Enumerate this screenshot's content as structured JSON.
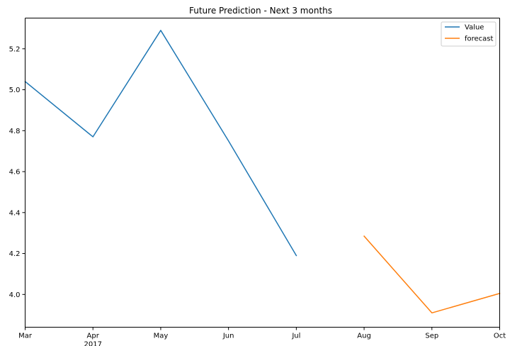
{
  "chart_data": {
    "type": "line",
    "title": "Future Prediction - Next 3 months",
    "xlabel": "",
    "ylabel": "",
    "x_ticks": [
      {
        "label": "Mar",
        "sublabel": "",
        "x": "2017-03"
      },
      {
        "label": "Apr",
        "sublabel": "2017",
        "x": "2017-04"
      },
      {
        "label": "May",
        "sublabel": "",
        "x": "2017-05"
      },
      {
        "label": "Jun",
        "sublabel": "",
        "x": "2017-06"
      },
      {
        "label": "Jul",
        "sublabel": "",
        "x": "2017-07"
      },
      {
        "label": "Aug",
        "sublabel": "",
        "x": "2017-08"
      },
      {
        "label": "Sep",
        "sublabel": "",
        "x": "2017-09"
      },
      {
        "label": "Oct",
        "sublabel": "",
        "x": "2017-10"
      }
    ],
    "xlim": [
      "2017-03",
      "2017-10"
    ],
    "ylim": [
      3.84,
      5.35
    ],
    "y_ticks": [
      "4.0",
      "4.2",
      "4.4",
      "4.6",
      "4.8",
      "5.0",
      "5.2"
    ],
    "grid": false,
    "legend_position": "top-right",
    "series": [
      {
        "name": "Value",
        "color": "#1f77b4",
        "points": [
          {
            "x": "2017-03",
            "y": 5.04
          },
          {
            "x": "2017-04",
            "y": 4.77
          },
          {
            "x": "2017-05",
            "y": 5.29
          },
          {
            "x": "2017-06",
            "y": 4.75
          },
          {
            "x": "2017-07",
            "y": 4.19
          }
        ]
      },
      {
        "name": "forecast",
        "color": "#ff7f0e",
        "points": [
          {
            "x": "2017-08",
            "y": 4.285
          },
          {
            "x": "2017-09",
            "y": 3.91
          },
          {
            "x": "2017-10",
            "y": 4.005
          }
        ]
      }
    ]
  }
}
